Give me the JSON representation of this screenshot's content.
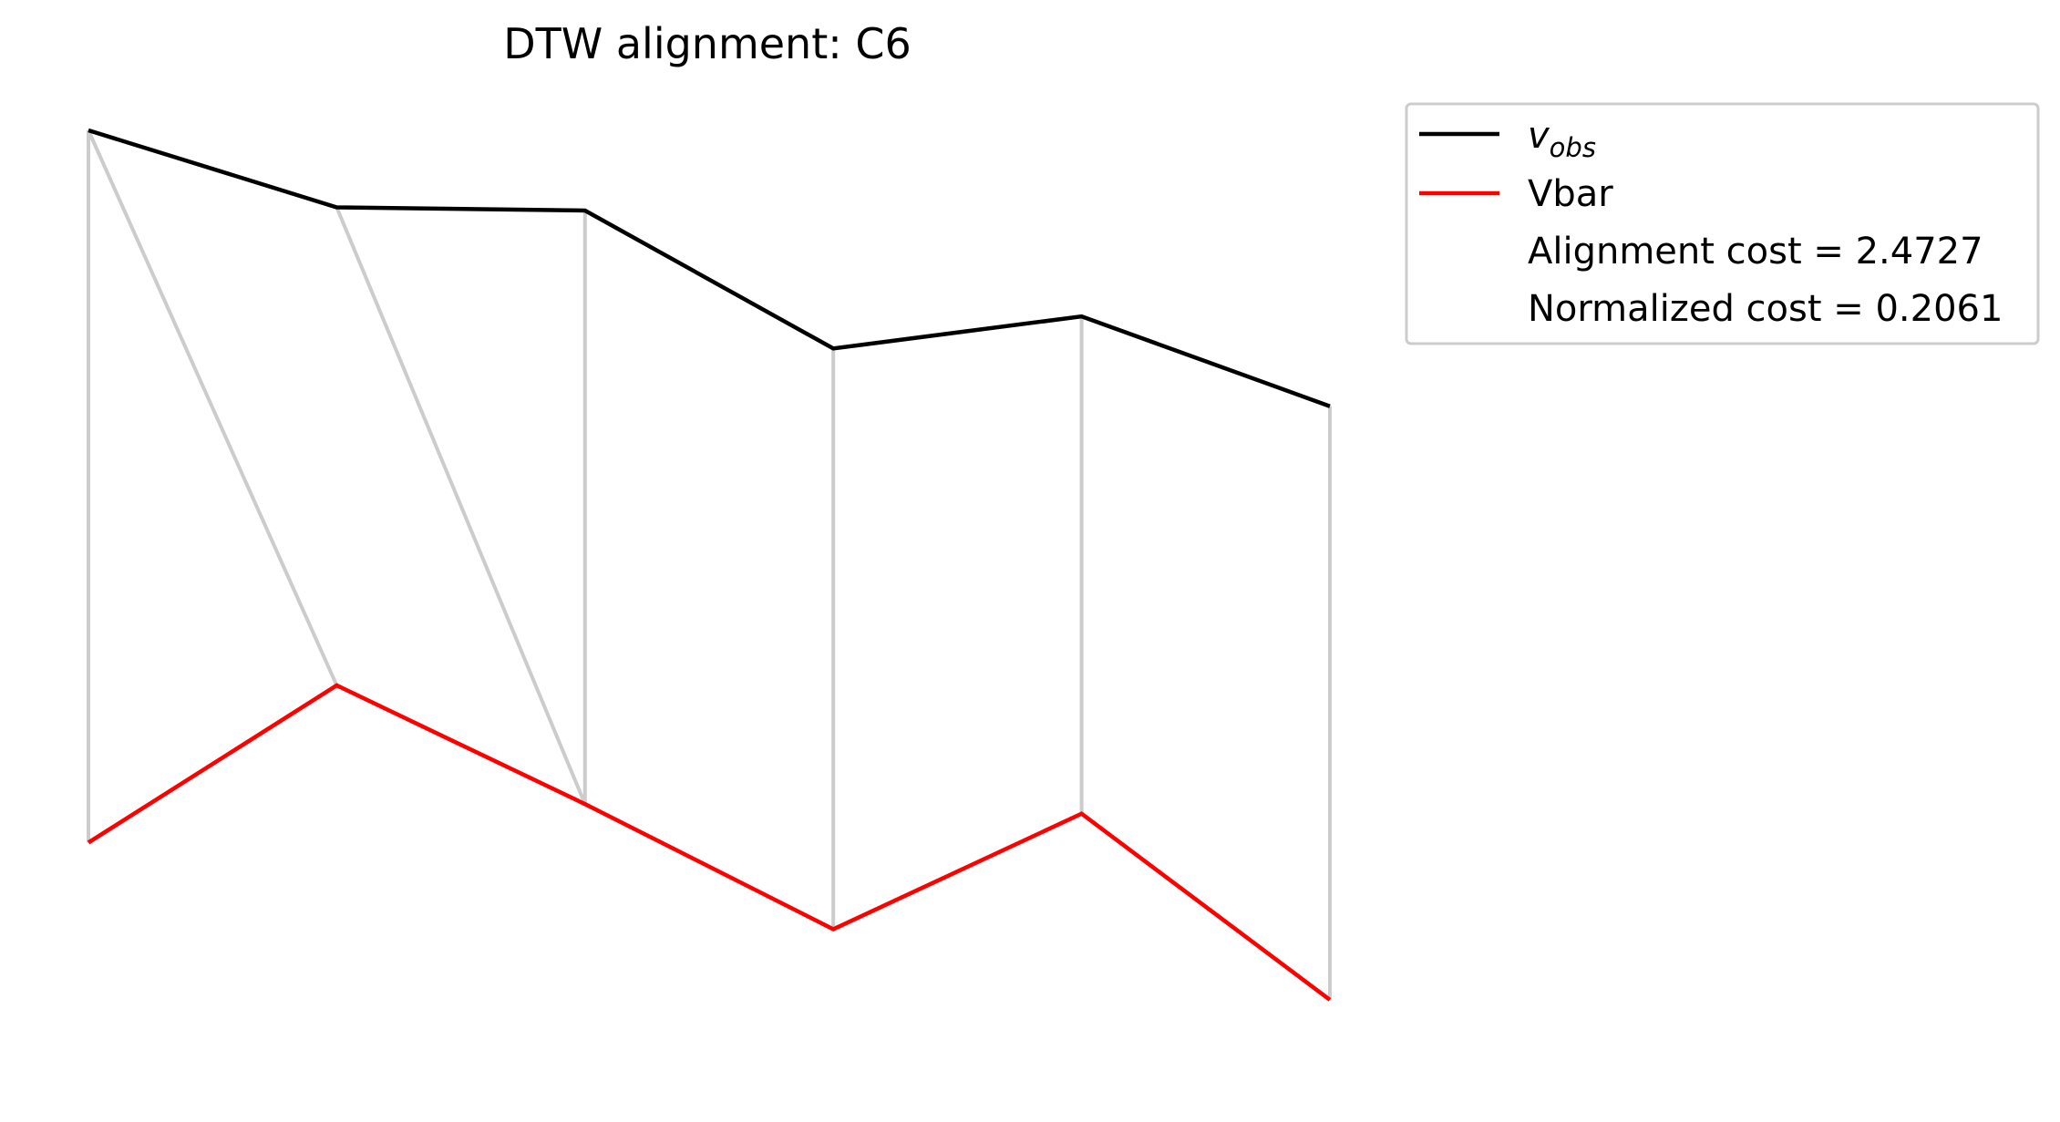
{
  "chart_data": {
    "type": "line",
    "title": "DTW alignment: C6",
    "xlabel": "",
    "ylabel": "",
    "axes_visible": false,
    "grid": false,
    "legend_position": "upper-right-outside",
    "x": [
      0,
      1,
      2,
      3,
      4,
      5
    ],
    "series": [
      {
        "name": "v_obs",
        "name_base": "v",
        "name_subscript": "obs",
        "color": "#000000",
        "values": [
          1.3,
          1.06,
          1.05,
          0.62,
          0.72,
          0.44
        ]
      },
      {
        "name": "Vbar",
        "color": "#ff0000",
        "values": [
          -0.92,
          -0.43,
          -0.8,
          -1.19,
          -0.83,
          -1.41
        ]
      }
    ],
    "alignment_path": [
      [
        0,
        0
      ],
      [
        0,
        1
      ],
      [
        1,
        2
      ],
      [
        2,
        2
      ],
      [
        3,
        3
      ],
      [
        4,
        4
      ],
      [
        5,
        5
      ]
    ],
    "alignment_color": "#cccccc",
    "annotations": [
      "Alignment cost = 2.4727",
      "Normalized cost = 0.2061"
    ]
  }
}
